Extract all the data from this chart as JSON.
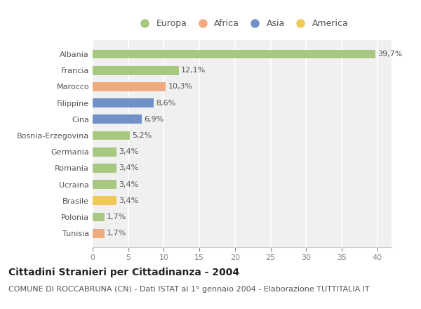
{
  "categories": [
    "Albania",
    "Francia",
    "Marocco",
    "Filippine",
    "Cina",
    "Bosnia-Erzegovina",
    "Germania",
    "Romania",
    "Ucraina",
    "Brasile",
    "Polonia",
    "Tunisia"
  ],
  "values": [
    39.7,
    12.1,
    10.3,
    8.6,
    6.9,
    5.2,
    3.4,
    3.4,
    3.4,
    3.4,
    1.7,
    1.7
  ],
  "labels": [
    "39,7%",
    "12,1%",
    "10,3%",
    "8,6%",
    "6,9%",
    "5,2%",
    "3,4%",
    "3,4%",
    "3,4%",
    "3,4%",
    "1,7%",
    "1,7%"
  ],
  "continents": [
    "Europa",
    "Europa",
    "Africa",
    "Asia",
    "Asia",
    "Europa",
    "Europa",
    "Europa",
    "Europa",
    "America",
    "Europa",
    "Africa"
  ],
  "continent_colors": {
    "Europa": "#a8c880",
    "Africa": "#f0aa80",
    "Asia": "#7090c8",
    "America": "#f0c858"
  },
  "legend_order": [
    "Europa",
    "Africa",
    "Asia",
    "America"
  ],
  "xlim": [
    0,
    42
  ],
  "xticks": [
    0,
    5,
    10,
    15,
    20,
    25,
    30,
    35,
    40
  ],
  "title": "Cittadini Stranieri per Cittadinanza - 2004",
  "subtitle": "COMUNE DI ROCCABRUNA (CN) - Dati ISTAT al 1° gennaio 2004 - Elaborazione TUTTITALIA.IT",
  "background_color": "#ffffff",
  "plot_bg_color": "#f0f0f0",
  "grid_color": "#ffffff",
  "title_fontsize": 10,
  "subtitle_fontsize": 8,
  "label_fontsize": 8,
  "tick_fontsize": 8,
  "legend_fontsize": 9,
  "bar_height": 0.55
}
